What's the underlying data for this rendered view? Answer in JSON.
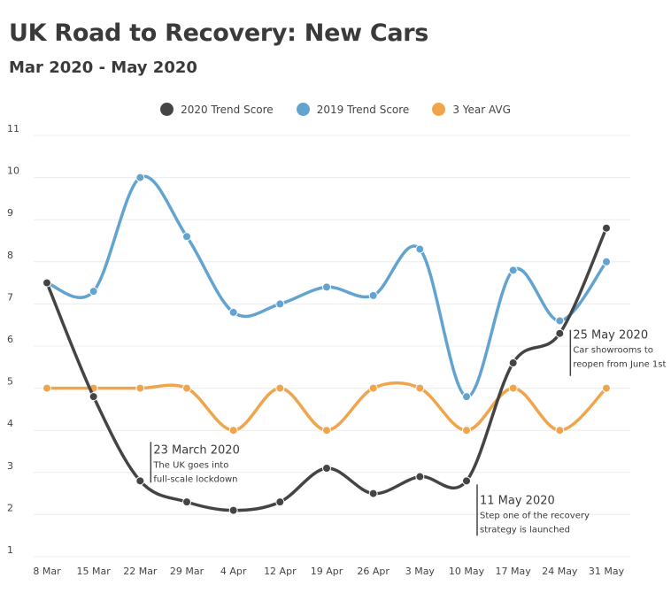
{
  "chart_data": {
    "type": "line",
    "title": "UK Road to Recovery: New Cars",
    "subtitle": "Mar 2020 - May 2020",
    "xlabel": "",
    "ylabel": "",
    "categories": [
      "8 Mar",
      "15 Mar",
      "22 Mar",
      "29 Mar",
      "4 Apr",
      "12 Apr",
      "19 Apr",
      "26 Apr",
      "3 May",
      "10 May",
      "17 May",
      "24 May",
      "31 May"
    ],
    "ylim": [
      1,
      11
    ],
    "yticks": [
      "1",
      "2",
      "3",
      "4",
      "5",
      "6",
      "7",
      "8",
      "9",
      "10",
      "11"
    ],
    "grid": true,
    "legend_position": "top-center",
    "series": [
      {
        "name": "2020 Trend Score",
        "color": "#444444",
        "values": [
          7.5,
          4.8,
          2.8,
          2.3,
          2.1,
          2.3,
          3.1,
          2.5,
          2.9,
          2.8,
          5.6,
          6.3,
          8.8
        ]
      },
      {
        "name": "2019 Trend Score",
        "color": "#62a3d0",
        "values": [
          7.5,
          7.3,
          10.0,
          8.6,
          6.8,
          7.0,
          7.4,
          7.2,
          8.3,
          4.8,
          7.8,
          6.6,
          8.0
        ]
      },
      {
        "name": "3 Year AVG",
        "color": "#f0a54c",
        "values": [
          5,
          5,
          5,
          5,
          4,
          5,
          4,
          5,
          5,
          4,
          5,
          4,
          5
        ]
      }
    ],
    "annotations": [
      {
        "index": 2,
        "value": 2.8,
        "title": "23 March 2020",
        "lines": [
          "The UK goes into",
          "full-scale lockdown"
        ]
      },
      {
        "index": 9,
        "value": 2.8,
        "title": "11 May 2020",
        "lines": [
          "Step one of the recovery",
          "strategy is launched"
        ]
      },
      {
        "index": 11,
        "value": 6.3,
        "title": "25 May 2020",
        "lines": [
          "Car showrooms to",
          "reopen from June 1st"
        ]
      }
    ]
  }
}
